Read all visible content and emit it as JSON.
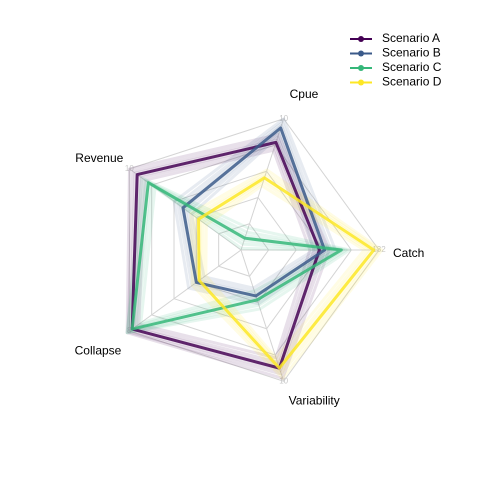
{
  "chart_data": {
    "type": "radar",
    "title": "",
    "axes": [
      {
        "name": "Cpue",
        "max_label": "10",
        "max": 10
      },
      {
        "name": "Catch",
        "max_label": "132",
        "max": 132
      },
      {
        "name": "Variability",
        "max_label": "10",
        "max": 10
      },
      {
        "name": "Collapse",
        "max_label": "8",
        "max": 8
      },
      {
        "name": "Revenue",
        "max_label": "10",
        "max": 10
      }
    ],
    "grid_levels": 5,
    "series": [
      {
        "name": "Scenario A",
        "color": "#440154",
        "values": [
          8.2,
          75,
          9.0,
          7.8,
          9.3
        ]
      },
      {
        "name": "Scenario B",
        "color": "#3b5a8a",
        "values": [
          9.3,
          80,
          3.5,
          3.2,
          5.2
        ]
      },
      {
        "name": "Scenario C",
        "color": "#35b779",
        "values": [
          0.9,
          96,
          3.8,
          7.8,
          8.3
        ]
      },
      {
        "name": "Scenario D",
        "color": "#fde725",
        "values": [
          5.5,
          127,
          9.0,
          3.0,
          3.8
        ]
      }
    ],
    "legend_position": "top-right"
  }
}
